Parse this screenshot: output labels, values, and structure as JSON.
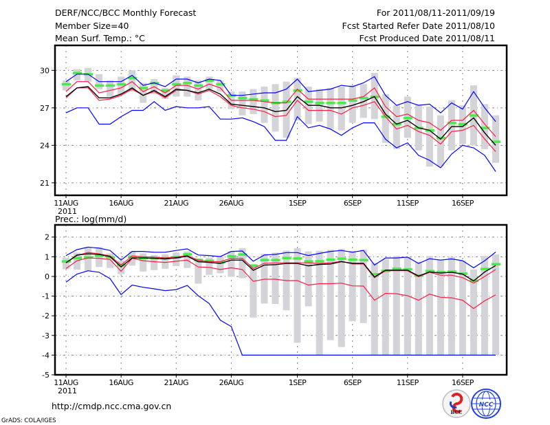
{
  "header": {
    "title": "DERF/NCC/BCC Monthly Forecast",
    "member_size": "Member Size=40",
    "variable": "Mean Surf. Temp.: °C",
    "period": "For 2011/08/11-2011/09/19",
    "start_date": "Fcst Started Refer Date 2011/08/10",
    "produced_date": "Fcst Produced Date 2011/08/11"
  },
  "footer": {
    "url": "http://cmdp.ncc.cma.gov.cn",
    "credit": "GrADS: COLA/IGES",
    "logo_bcc": "BCC",
    "logo_ncc": "NCC"
  },
  "colors": {
    "max_min": "#0000ff",
    "spread": "#ff1a40",
    "mean": "#000000",
    "obs": "#44ee44",
    "bar": "#d3d3d8",
    "grid": "#808080"
  },
  "chart_data": [
    {
      "type": "line",
      "title": "Mean Surf. Temp.: °C",
      "ylabel": "",
      "ylim": [
        20,
        32
      ],
      "xlim_days": [
        -1,
        40
      ],
      "grid": true,
      "y_ticks": [
        30,
        27,
        24,
        21
      ],
      "x_ticks": [
        {
          "day": 0,
          "label": "11AUG"
        },
        {
          "day": 5,
          "label": "16AUG"
        },
        {
          "day": 10,
          "label": "21AUG"
        },
        {
          "day": 15,
          "label": "26AUG"
        },
        {
          "day": 21,
          "label": "1SEP"
        },
        {
          "day": 26,
          "label": "6SEP"
        },
        {
          "day": 31,
          "label": "11SEP"
        },
        {
          "day": 36,
          "label": "16SEP"
        }
      ],
      "year_label": "2011",
      "series": {
        "max": [
          29.1,
          29.7,
          29.7,
          29.1,
          29.1,
          29.1,
          29.6,
          28.8,
          29.0,
          28.7,
          29.3,
          29.3,
          29.0,
          29.3,
          29.2,
          28.0,
          28.0,
          28.1,
          28.2,
          28.2,
          28.5,
          29.3,
          28.3,
          28.4,
          28.5,
          28.8,
          28.7,
          29.0,
          29.5,
          28.0,
          27.2,
          27.5,
          27.2,
          27.3,
          26.6,
          27.4,
          26.9,
          28.3,
          27.0,
          25.9
        ],
        "upper": [
          28.3,
          29.1,
          29.1,
          28.2,
          28.4,
          28.6,
          29.1,
          28.3,
          28.7,
          28.2,
          28.8,
          28.8,
          28.5,
          28.9,
          28.6,
          27.6,
          27.6,
          27.6,
          27.5,
          27.4,
          27.4,
          28.5,
          27.7,
          27.7,
          27.7,
          27.7,
          27.7,
          27.9,
          28.6,
          27.1,
          26.3,
          26.5,
          26.0,
          25.8,
          25.2,
          26.0,
          26.0,
          26.8,
          25.7,
          24.7
        ],
        "mean": [
          27.9,
          28.6,
          28.7,
          27.8,
          27.8,
          28.1,
          28.6,
          28.0,
          28.4,
          27.9,
          28.5,
          28.4,
          28.2,
          28.5,
          28.1,
          27.3,
          27.2,
          27.1,
          27.0,
          26.7,
          26.8,
          27.9,
          27.2,
          27.2,
          27.0,
          27.0,
          27.2,
          27.5,
          27.9,
          26.5,
          25.7,
          26.0,
          25.4,
          25.2,
          24.5,
          25.5,
          25.5,
          26.2,
          25.0,
          24.0
        ],
        "lower": [
          27.8,
          28.6,
          28.6,
          27.6,
          27.7,
          28.0,
          28.5,
          28.0,
          28.3,
          27.8,
          28.4,
          28.4,
          28.1,
          28.4,
          27.9,
          27.2,
          27.0,
          26.9,
          26.7,
          26.3,
          26.4,
          27.6,
          26.8,
          26.8,
          26.8,
          26.5,
          27.0,
          27.2,
          27.5,
          26.3,
          25.3,
          25.6,
          25.1,
          24.8,
          24.1,
          25.1,
          25.2,
          25.6,
          24.5,
          23.5
        ],
        "min": [
          26.6,
          27.0,
          27.0,
          25.7,
          25.7,
          26.3,
          26.8,
          26.8,
          27.5,
          26.8,
          27.1,
          27.0,
          27.0,
          27.1,
          26.1,
          26.1,
          26.2,
          25.9,
          25.5,
          24.4,
          24.4,
          26.3,
          25.4,
          25.6,
          25.3,
          24.8,
          25.4,
          25.8,
          25.8,
          24.5,
          23.8,
          24.2,
          23.2,
          22.8,
          22.2,
          23.3,
          24.0,
          23.8,
          23.2,
          21.9
        ],
        "obs": [
          28.9,
          29.8,
          29.7,
          28.8,
          28.8,
          28.9,
          29.4,
          28.6,
          29.0,
          28.4,
          28.9,
          29.0,
          28.8,
          29.2,
          28.9,
          28.0,
          27.8,
          27.7,
          27.6,
          27.4,
          27.5,
          28.4,
          27.5,
          27.4,
          27.4,
          27.4,
          27.6,
          27.8,
          27.9,
          26.3,
          25.7,
          26.2,
          25.4,
          25.2,
          24.6,
          25.8,
          25.7,
          26.4,
          25.4,
          24.3
        ],
        "bar_hi": [
          29.2,
          30.1,
          30.2,
          29.7,
          29.2,
          29.5,
          30.0,
          29.0,
          29.3,
          28.6,
          29.6,
          29.5,
          29.2,
          29.5,
          29.2,
          28.3,
          28.3,
          28.5,
          28.7,
          28.9,
          29.1,
          29.4,
          28.7,
          28.5,
          28.6,
          28.7,
          28.8,
          28.9,
          29.8,
          28.1,
          27.2,
          27.9,
          27.3,
          27.1,
          26.4,
          27.6,
          27.2,
          28.8,
          27.3,
          26.4
        ],
        "bar_lo": [
          28.4,
          29.2,
          29.1,
          28.5,
          27.9,
          28.1,
          28.3,
          27.4,
          28.1,
          27.7,
          27.9,
          27.9,
          27.6,
          28.5,
          28.3,
          26.9,
          26.4,
          26.5,
          25.8,
          25.1,
          24.6,
          26.0,
          25.7,
          25.9,
          25.3,
          25.2,
          25.8,
          26.2,
          26.1,
          24.2,
          23.7,
          24.6,
          23.6,
          22.3,
          22.3,
          23.6,
          24.1,
          24.0,
          23.7,
          22.6
        ]
      }
    },
    {
      "type": "line",
      "title": "Prec.: log(mm/d)",
      "ylabel": "",
      "ylim": [
        -5,
        2.62
      ],
      "xlim_days": [
        -1,
        40
      ],
      "grid": true,
      "y_ticks": [
        2,
        1,
        0,
        -1,
        -2,
        -3,
        -4,
        -5
      ],
      "x_ticks": [
        {
          "day": 0,
          "label": "11AUG"
        },
        {
          "day": 5,
          "label": "16AUG"
        },
        {
          "day": 10,
          "label": "21AUG"
        },
        {
          "day": 15,
          "label": "26AUG"
        },
        {
          "day": 21,
          "label": "1SEP"
        },
        {
          "day": 26,
          "label": "6SEP"
        },
        {
          "day": 31,
          "label": "11SEP"
        },
        {
          "day": 36,
          "label": "16SEP"
        }
      ],
      "year_label": "2011",
      "series": {
        "max": [
          1.06,
          1.36,
          1.49,
          1.44,
          1.32,
          0.83,
          1.27,
          1.27,
          1.23,
          1.23,
          1.32,
          1.4,
          1.09,
          1.06,
          1.01,
          1.27,
          1.29,
          0.77,
          1.09,
          1.12,
          1.21,
          1.21,
          1.06,
          1.17,
          1.27,
          1.32,
          1.23,
          1.32,
          0.58,
          0.94,
          0.94,
          0.98,
          0.66,
          0.9,
          0.83,
          0.89,
          0.8,
          0.44,
          0.8,
          1.24
        ],
        "upper": [
          0.69,
          1.06,
          1.22,
          1.15,
          1.04,
          0.58,
          1.04,
          1.0,
          0.98,
          0.94,
          0.98,
          1.06,
          0.83,
          0.75,
          0.75,
          0.92,
          0.92,
          0.4,
          0.67,
          0.69,
          0.69,
          0.69,
          0.69,
          0.66,
          0.69,
          0.77,
          0.63,
          0.63,
          -0.06,
          0.29,
          0.29,
          0.29,
          -0.02,
          0.21,
          0.06,
          0.06,
          -0.06,
          -0.34,
          0.0,
          0.35
        ],
        "mean": [
          0.69,
          1.09,
          1.15,
          1.12,
          1.01,
          0.48,
          0.94,
          0.94,
          0.92,
          0.89,
          0.94,
          1.03,
          0.75,
          0.71,
          0.66,
          0.83,
          0.83,
          0.31,
          0.58,
          0.6,
          0.66,
          0.66,
          0.54,
          0.61,
          0.63,
          0.75,
          0.67,
          0.67,
          -0.03,
          0.32,
          0.32,
          0.32,
          0.02,
          0.23,
          0.17,
          0.21,
          0.12,
          -0.23,
          0.23,
          0.55
        ],
        "lower": [
          0.4,
          0.8,
          0.94,
          0.92,
          0.86,
          0.26,
          0.92,
          0.8,
          0.75,
          0.71,
          0.77,
          0.83,
          0.48,
          0.46,
          0.35,
          0.44,
          0.35,
          -0.25,
          -0.14,
          -0.14,
          -0.21,
          -0.21,
          -0.44,
          -0.37,
          -0.37,
          -0.34,
          -0.48,
          -0.49,
          -1.21,
          -0.86,
          -0.88,
          -0.98,
          -1.21,
          -0.9,
          -1.06,
          -1.09,
          -1.21,
          -1.63,
          -1.24,
          -0.94
        ],
        "min": [
          -0.29,
          0.12,
          0.29,
          0.21,
          -0.11,
          -0.92,
          -0.44,
          -0.55,
          -0.63,
          -0.72,
          -0.67,
          -0.46,
          -0.98,
          -1.38,
          -2.22,
          -2.55,
          -4,
          -4,
          -4,
          -4,
          -4,
          -4,
          -4,
          -4,
          -4,
          -4,
          -4,
          -4,
          -4,
          -4,
          -4,
          -4,
          -4,
          -4,
          -4,
          -4,
          -4,
          -4,
          -4,
          -4
        ],
        "obs": [
          0.77,
          0.94,
          0.98,
          1.06,
          0.98,
          0.58,
          1.0,
          0.94,
          0.94,
          0.94,
          0.98,
          1.13,
          0.84,
          0.8,
          0.72,
          1.03,
          1.12,
          0.55,
          0.84,
          0.84,
          0.94,
          0.92,
          0.77,
          0.78,
          0.86,
          0.91,
          0.86,
          0.84,
          0.12,
          0.29,
          0.4,
          0.37,
          0.05,
          0.28,
          0.23,
          0.25,
          0.15,
          -0.21,
          0.39,
          0.63
        ],
        "bar_hi": [
          0.94,
          1.21,
          1.46,
          1.49,
          1.17,
          0.8,
          1.27,
          1.17,
          1.08,
          1.12,
          1.21,
          1.27,
          0.92,
          0.94,
          1.01,
          1.29,
          1.44,
          0.63,
          1.15,
          1.21,
          1.31,
          1.44,
          1.27,
          1.3,
          1.35,
          1.4,
          1.3,
          1.36,
          0.69,
          0.89,
          1.04,
          0.98,
          0.75,
          1.04,
          0.86,
          1.0,
          0.8,
          0.35,
          1.04,
          1.12
        ],
        "bar_lo": [
          0.37,
          0.35,
          0.29,
          0.48,
          0.43,
          0.12,
          0.55,
          0.25,
          0.32,
          0.39,
          0.52,
          0.43,
          -0.37,
          0.08,
          0.16,
          -0.02,
          -0.09,
          -2.09,
          -1.38,
          -1.4,
          -1.72,
          -3.37,
          -1.52,
          -4,
          -3.24,
          -3.59,
          -2.28,
          -2.37,
          -4,
          -4,
          -4,
          -4,
          -4,
          -4,
          -4,
          -4,
          -4,
          -4,
          -4,
          -4
        ]
      }
    }
  ]
}
